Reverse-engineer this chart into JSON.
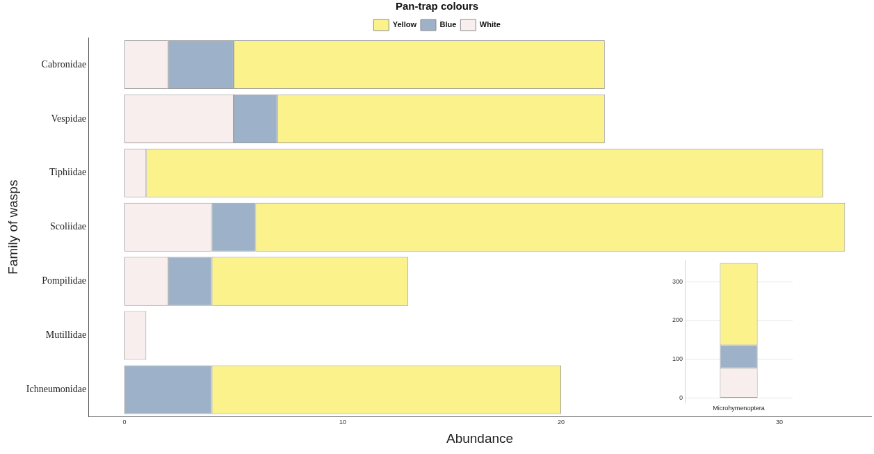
{
  "chart_data": [
    {
      "type": "bar",
      "orientation": "horizontal",
      "stacked": true,
      "xlabel": "Abundance",
      "ylabel": "Family of wasps",
      "legend_title": "Pan-trap colours",
      "legend": "top",
      "grid": false,
      "categories": [
        "Cabronidae",
        "Vespidae",
        "Tiphiidae",
        "Scoliidae",
        "Pompilidae",
        "Mutillidae",
        "Ichneumonidae"
      ],
      "xlim": [
        -1.65,
        34.2
      ],
      "xticks": [
        0,
        10,
        20,
        30
      ],
      "series": [
        {
          "name": "White",
          "color": "#f9eeee",
          "values": [
            2,
            5,
            1,
            4,
            2,
            1,
            0
          ]
        },
        {
          "name": "Blue",
          "color": "#9db2c9",
          "values": [
            3,
            2,
            0,
            2,
            2,
            0,
            4
          ]
        },
        {
          "name": "Yellow",
          "color": "#fbf28c",
          "values": [
            17,
            15,
            31,
            27,
            9,
            0,
            16
          ]
        }
      ]
    },
    {
      "type": "bar",
      "stacked": true,
      "grid": "y",
      "categories": [
        "Microhymenoptera"
      ],
      "ylim": [
        -12,
        355
      ],
      "yticks": [
        0,
        100,
        200,
        300
      ],
      "series": [
        {
          "color": "#f9eeee",
          "values": [
            77
          ]
        },
        {
          "color": "#9db2c9",
          "values": [
            59
          ]
        },
        {
          "color": "#fbf28c",
          "values": [
            212
          ]
        }
      ]
    }
  ]
}
